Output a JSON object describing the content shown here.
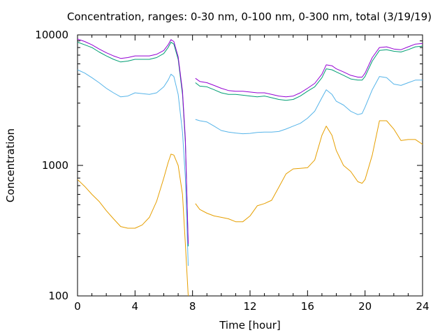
{
  "chart_data": {
    "type": "line",
    "title": "Concentration, ranges: 0-30 nm, 0-100 nm, 0-300 nm, total (3/19/19)",
    "xlabel": "Time [hour]",
    "ylabel": "Concentration",
    "xlim": [
      0,
      24
    ],
    "ylim": [
      100,
      10000
    ],
    "yscale": "log",
    "grid": false,
    "legend": "none",
    "x_ticks": [
      0,
      4,
      8,
      12,
      16,
      20,
      24
    ],
    "x_tick_labels": [
      "0",
      "4",
      "8",
      "12",
      "16",
      "20",
      "24"
    ],
    "y_ticks": [
      100,
      1000,
      10000
    ],
    "y_tick_labels": [
      "100",
      "1000",
      "10000"
    ],
    "series": [
      {
        "color": "#e69f00",
        "x": [
          0,
          0.5,
          1,
          1.5,
          2,
          2.5,
          3,
          3.5,
          4,
          4.5,
          5,
          5.5,
          6,
          6.3,
          6.5,
          6.7,
          7.0,
          7.3,
          7.5,
          7.7,
          null,
          8.2,
          8.5,
          9,
          9.5,
          10,
          10.5,
          11,
          11.5,
          12,
          12.5,
          13,
          13.5,
          14,
          14.5,
          15,
          15.5,
          16,
          16.5,
          17,
          17.3,
          17.7,
          18,
          18.5,
          19,
          19.5,
          19.8,
          20,
          20.5,
          21,
          21.5,
          22,
          22.5,
          23,
          23.5,
          24
        ],
        "y": [
          780,
          690,
          600,
          530,
          450,
          390,
          340,
          330,
          330,
          350,
          400,
          530,
          800,
          1050,
          1220,
          1200,
          1000,
          600,
          250,
          100,
          null,
          510,
          460,
          430,
          410,
          400,
          390,
          370,
          370,
          410,
          490,
          510,
          540,
          680,
          860,
          940,
          950,
          960,
          1100,
          1700,
          2000,
          1700,
          1300,
          1000,
          900,
          750,
          730,
          780,
          1200,
          2200,
          2200,
          1900,
          1550,
          1580,
          1580,
          1450
        ]
      },
      {
        "color": "#56b4e9",
        "x": [
          0,
          0.5,
          1,
          1.5,
          2,
          2.5,
          3,
          3.5,
          4,
          4.5,
          5,
          5.5,
          6,
          6.3,
          6.5,
          6.7,
          7.0,
          7.3,
          7.5,
          7.7,
          null,
          8.2,
          8.5,
          9,
          9.5,
          10,
          10.5,
          11,
          11.5,
          12,
          12.5,
          13,
          13.5,
          14,
          14.5,
          15,
          15.5,
          16,
          16.5,
          17,
          17.3,
          17.7,
          18,
          18.5,
          19,
          19.5,
          19.8,
          20,
          20.5,
          21,
          21.5,
          22,
          22.5,
          23,
          23.5,
          24
        ],
        "y": [
          5400,
          5100,
          4700,
          4300,
          3900,
          3600,
          3350,
          3400,
          3600,
          3550,
          3500,
          3600,
          4000,
          4500,
          5000,
          4800,
          3500,
          1800,
          800,
          170,
          null,
          2250,
          2200,
          2150,
          2000,
          1850,
          1800,
          1770,
          1750,
          1760,
          1790,
          1800,
          1800,
          1820,
          1900,
          2000,
          2100,
          2300,
          2600,
          3300,
          3800,
          3500,
          3100,
          2900,
          2600,
          2450,
          2500,
          2800,
          3800,
          4800,
          4700,
          4200,
          4100,
          4300,
          4500,
          4500
        ]
      },
      {
        "color": "#009e73",
        "x": [
          0,
          0.5,
          1,
          1.5,
          2,
          2.5,
          3,
          3.5,
          4,
          4.5,
          5,
          5.5,
          6,
          6.3,
          6.5,
          6.7,
          7.0,
          7.3,
          7.5,
          7.7,
          null,
          8.2,
          8.5,
          9,
          9.5,
          10,
          10.5,
          11,
          11.5,
          12,
          12.5,
          13,
          13.5,
          14,
          14.5,
          15,
          15.5,
          16,
          16.5,
          17,
          17.3,
          17.7,
          18,
          18.5,
          19,
          19.5,
          19.8,
          20,
          20.5,
          21,
          21.5,
          22,
          22.5,
          23,
          23.5,
          24
        ],
        "y": [
          8800,
          8400,
          8000,
          7400,
          6900,
          6500,
          6200,
          6300,
          6500,
          6500,
          6500,
          6700,
          7200,
          8000,
          8800,
          8500,
          6500,
          3500,
          1500,
          240,
          null,
          4300,
          4050,
          4000,
          3800,
          3600,
          3500,
          3500,
          3450,
          3400,
          3350,
          3400,
          3300,
          3200,
          3150,
          3200,
          3400,
          3700,
          4000,
          4700,
          5500,
          5400,
          5200,
          4900,
          4600,
          4500,
          4500,
          4800,
          6300,
          7600,
          7700,
          7500,
          7400,
          7700,
          8100,
          8200
        ]
      },
      {
        "color": "#9400d3",
        "x": [
          0,
          0.5,
          1,
          1.5,
          2,
          2.5,
          3,
          3.5,
          4,
          4.5,
          5,
          5.5,
          6,
          6.3,
          6.5,
          6.7,
          7.0,
          7.3,
          7.5,
          7.7,
          null,
          8.2,
          8.5,
          9,
          9.5,
          10,
          10.5,
          11,
          11.5,
          12,
          12.5,
          13,
          13.5,
          14,
          14.5,
          15,
          15.5,
          16,
          16.5,
          17,
          17.3,
          17.7,
          18,
          18.5,
          19,
          19.5,
          19.8,
          20,
          20.5,
          21,
          21.5,
          22,
          22.5,
          23,
          23.5,
          24
        ],
        "y": [
          9300,
          8900,
          8400,
          7800,
          7300,
          6900,
          6600,
          6700,
          6900,
          6900,
          6900,
          7100,
          7600,
          8400,
          9200,
          8900,
          6800,
          3700,
          1600,
          250,
          null,
          4650,
          4400,
          4300,
          4100,
          3900,
          3750,
          3700,
          3700,
          3650,
          3600,
          3600,
          3500,
          3400,
          3350,
          3400,
          3600,
          3900,
          4250,
          5000,
          5900,
          5800,
          5500,
          5200,
          4900,
          4750,
          4750,
          5100,
          6700,
          8000,
          8100,
          7800,
          7700,
          8100,
          8500,
          8600
        ]
      }
    ]
  }
}
